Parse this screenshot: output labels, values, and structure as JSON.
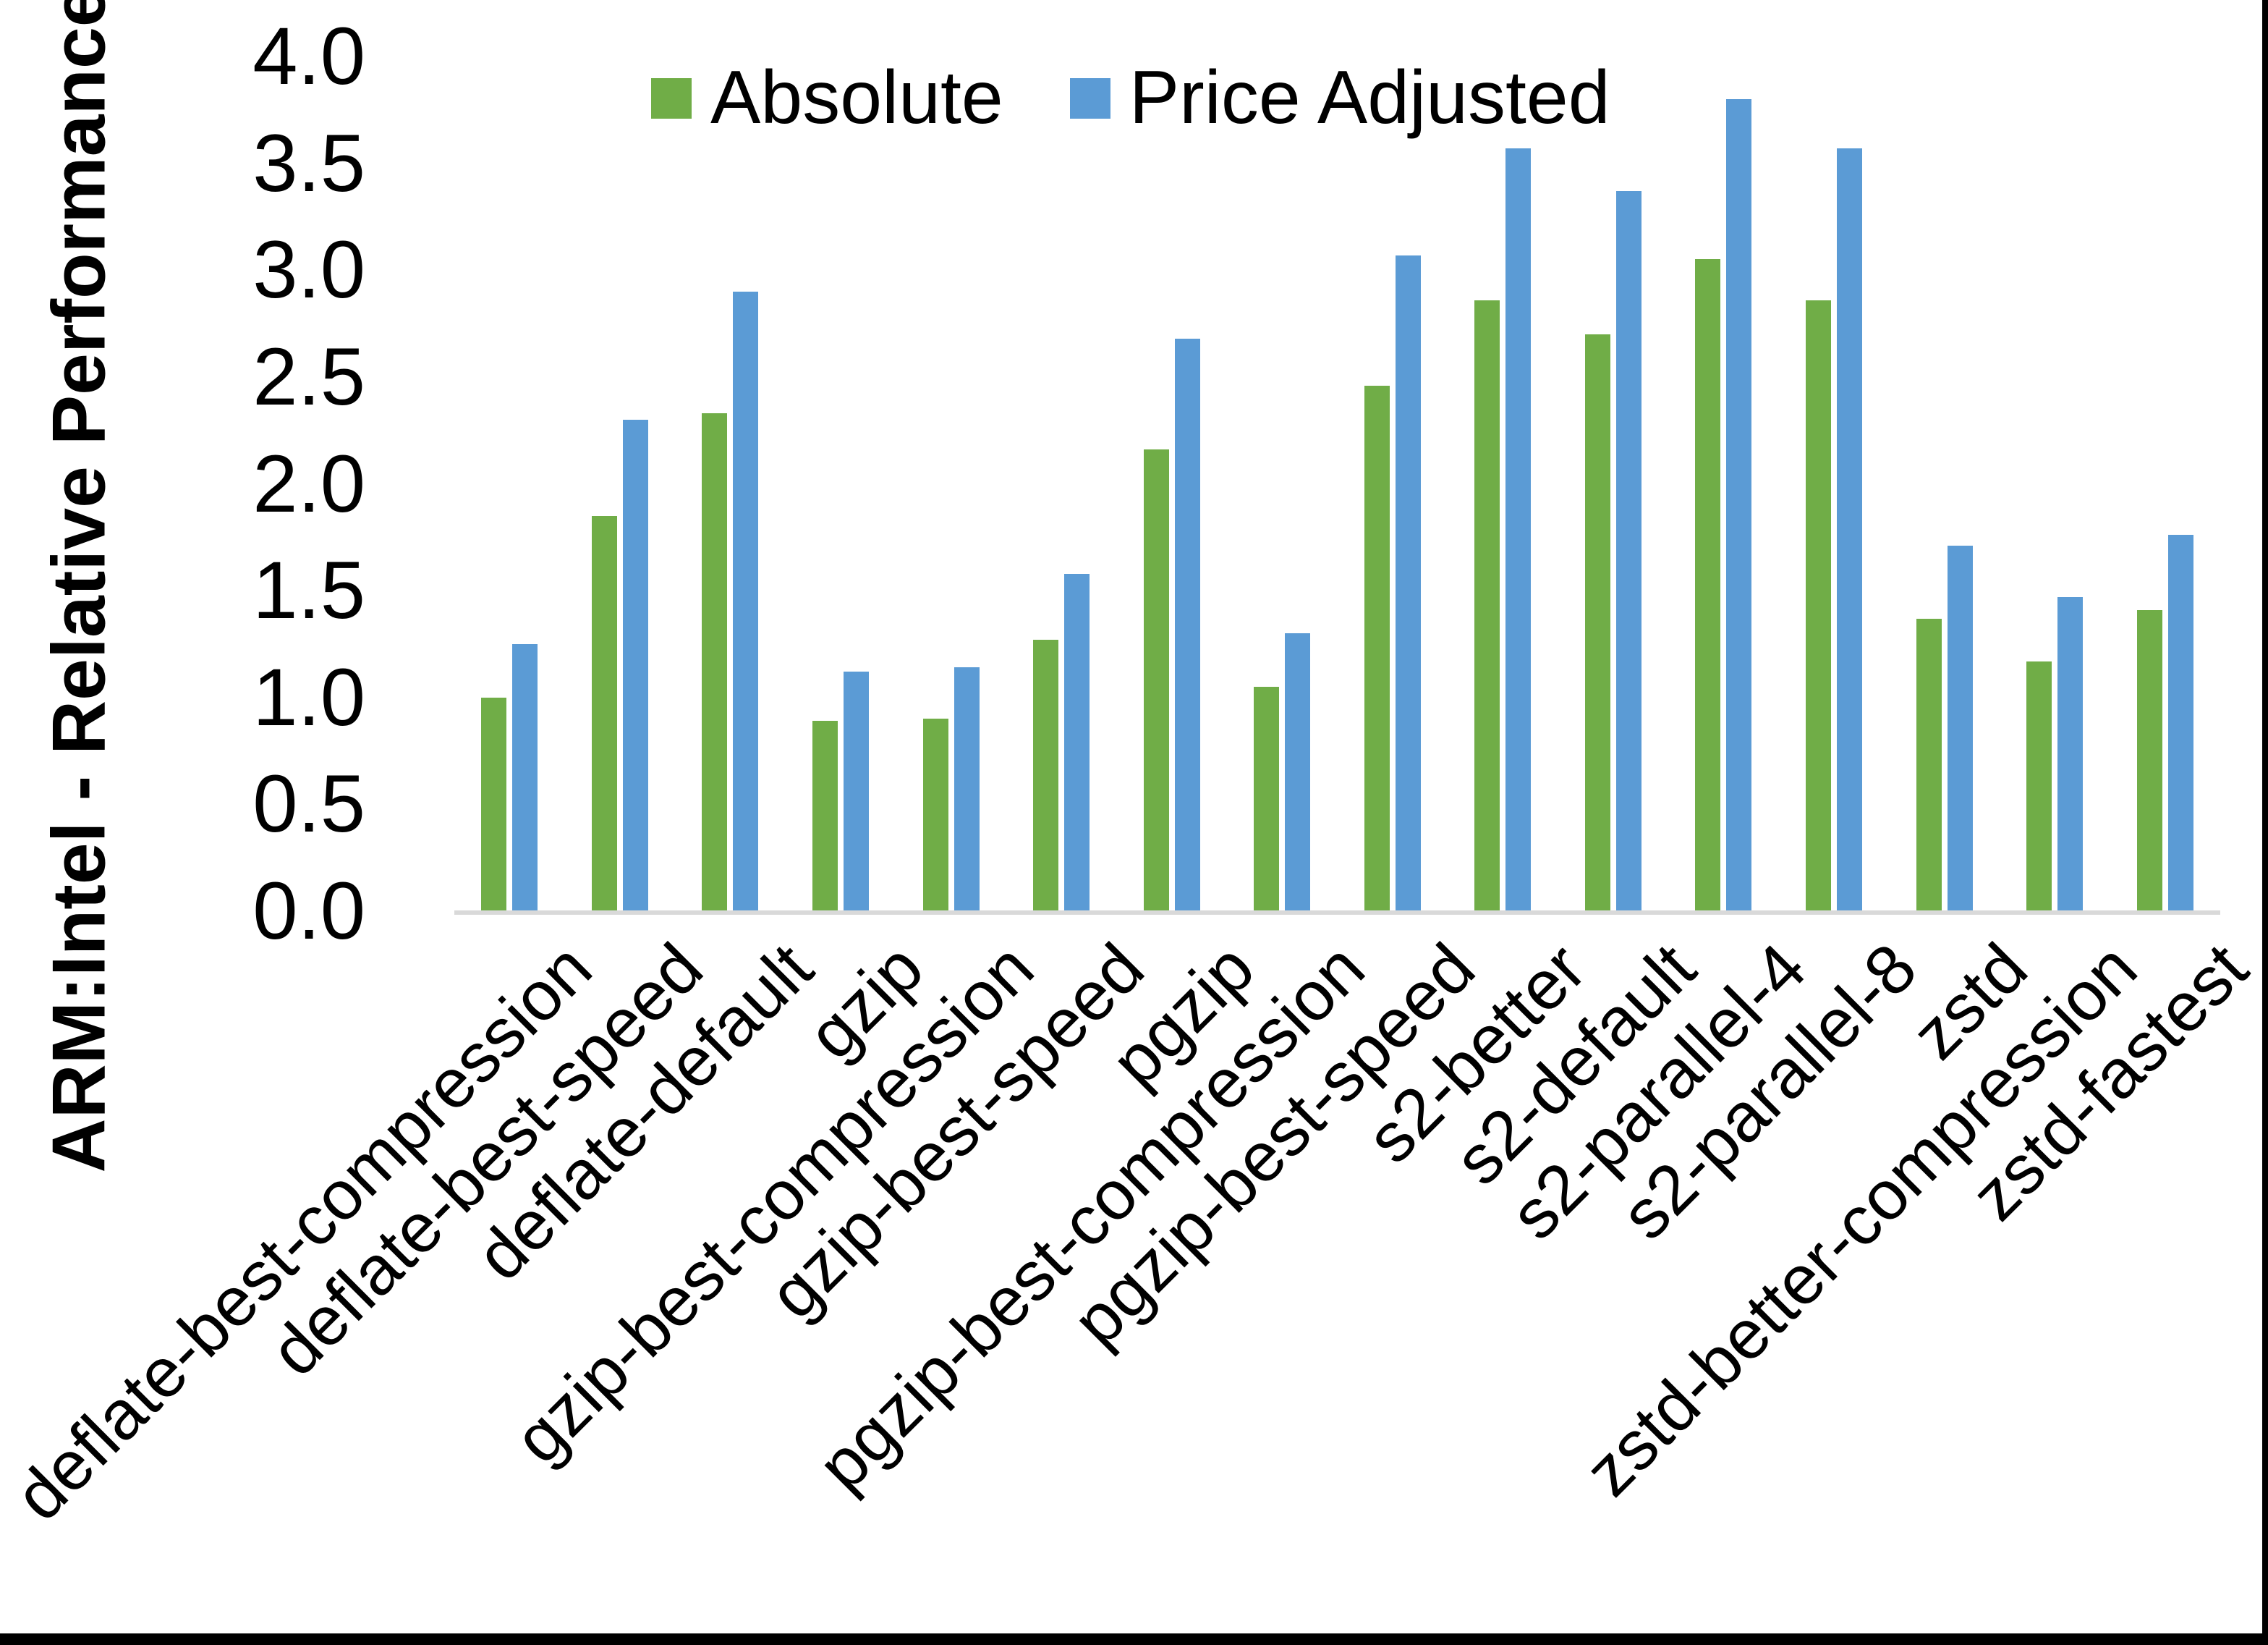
{
  "y_axis": {
    "title": "ARM:Intel - Relative Performance",
    "ticks": [
      "0.0",
      "0.5",
      "1.0",
      "1.5",
      "2.0",
      "2.5",
      "3.0",
      "3.5",
      "4.0"
    ]
  },
  "legend": {
    "items": [
      {
        "label": "Absolute",
        "color": "#70AD47"
      },
      {
        "label": "Price Adjusted",
        "color": "#5B9BD5"
      }
    ]
  },
  "colors": {
    "absolute_green": "#70AD47",
    "price_adjusted_blue": "#5B9BD5",
    "axis_line_gray": "#D9D9D9",
    "text_black": "#000000",
    "frame_border_black": "#000000",
    "background_white": "#FFFFFF"
  },
  "chart_data": {
    "type": "bar",
    "title": "",
    "xlabel": "",
    "ylabel": "ARM:Intel - Relative Performance",
    "ylim": [
      0,
      4
    ],
    "ytick_step": 0.5,
    "grid": false,
    "legend_position": "top-center",
    "x_label_rotation_deg": 45,
    "categories": [
      "deflate-best-compression",
      "deflate-best-speed",
      "deflate-default",
      "gzip",
      "gzip-best-compression",
      "gzip-best-speed",
      "pgzip",
      "pgzip-best-compression",
      "pgzip-best-speed",
      "s2-better",
      "s2-default",
      "s2-parallel-4",
      "s2-parallel-8",
      "zstd",
      "zstd-better-compression",
      "zstd-fastest"
    ],
    "series": [
      {
        "name": "Absolute",
        "color": "#70AD47",
        "values": [
          1.0,
          1.85,
          2.33,
          0.89,
          0.9,
          1.27,
          2.16,
          1.05,
          2.46,
          2.86,
          2.7,
          3.05,
          2.86,
          1.37,
          1.17,
          1.41
        ]
      },
      {
        "name": "Price Adjusted",
        "color": "#5B9BD5",
        "values": [
          1.25,
          2.3,
          2.9,
          1.12,
          1.14,
          1.58,
          2.68,
          1.3,
          3.07,
          3.57,
          3.37,
          3.8,
          3.57,
          1.71,
          1.47,
          1.76
        ]
      }
    ]
  }
}
